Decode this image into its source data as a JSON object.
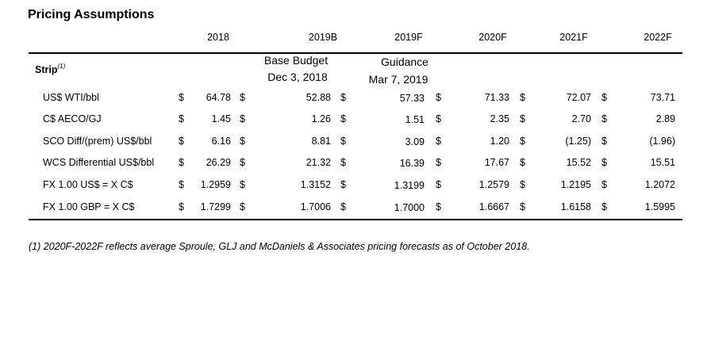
{
  "title": "Pricing Assumptions",
  "columns": [
    "2018",
    "2019B",
    "2019F",
    "2020F",
    "2021F",
    "2022F"
  ],
  "strip_label": "Strip",
  "strip_note": "(1)",
  "subheaders": {
    "col_2019b": [
      "Base Budget",
      "Dec 3, 2018"
    ],
    "col_2019f": [
      "Guidance",
      "Mar 7, 2019"
    ]
  },
  "currency_symbol": "$",
  "rows": [
    {
      "label": "US$ WTI/bbl",
      "values": [
        "64.78",
        "52.88",
        "57.33",
        "71.33",
        "72.07",
        "73.71"
      ]
    },
    {
      "label": "C$ AECO/GJ",
      "values": [
        "1.45",
        "1.26",
        "1.51",
        "2.35",
        "2.70",
        "2.89"
      ]
    },
    {
      "label": "SCO Diff/(prem) US$/bbl",
      "values": [
        "6.16",
        "8.81",
        "3.09",
        "1.20",
        "(1.25)",
        "(1.96)"
      ]
    },
    {
      "label": "WCS Differential US$/bbl",
      "values": [
        "26.29",
        "21.32",
        "16.39",
        "17.67",
        "15.52",
        "15.51"
      ]
    },
    {
      "label": "FX 1.00 US$ = X C$",
      "values": [
        "1.2959",
        "1.3152",
        "1.3199",
        "1.2579",
        "1.2195",
        "1.2072"
      ]
    },
    {
      "label": "FX 1.00 GBP = X C$",
      "values": [
        "1.7299",
        "1.7006",
        "1.7000",
        "1.6667",
        "1.6158",
        "1.5995"
      ]
    }
  ],
  "footnote": "(1) 2020F-2022F reflects average Sproule, GLJ and McDaniels & Associates pricing forecasts as of October 2018."
}
